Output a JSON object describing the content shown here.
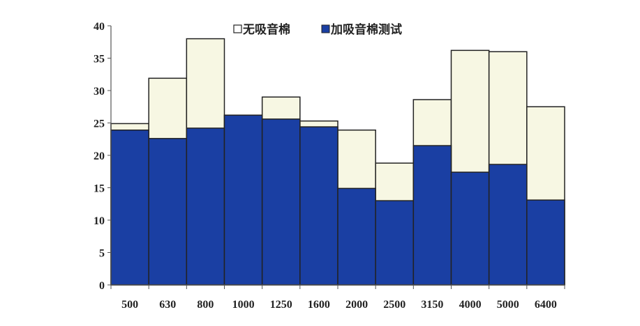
{
  "chart_data": {
    "type": "bar",
    "title": "",
    "xlabel": "",
    "ylabel": "",
    "ylim": [
      0,
      40
    ],
    "yticks": [
      0,
      5,
      10,
      15,
      20,
      25,
      30,
      35,
      40
    ],
    "grid": false,
    "legend_position": "top-center",
    "categories": [
      "500",
      "630",
      "800",
      "1000",
      "1250",
      "1600",
      "2000",
      "2500",
      "3150",
      "4000",
      "5000",
      "6400"
    ],
    "series": [
      {
        "name": "无吸音棉",
        "color": "#f7f7e3",
        "values": [
          24.9,
          31.9,
          38.0,
          26.2,
          29.0,
          25.3,
          23.9,
          18.8,
          28.6,
          36.2,
          36.0,
          27.5
        ]
      },
      {
        "name": "加吸音棉测试",
        "color": "#1a3fa3",
        "values": [
          23.9,
          22.6,
          24.2,
          26.2,
          25.6,
          24.4,
          14.9,
          13.0,
          21.5,
          17.4,
          18.6,
          13.1
        ]
      }
    ]
  }
}
